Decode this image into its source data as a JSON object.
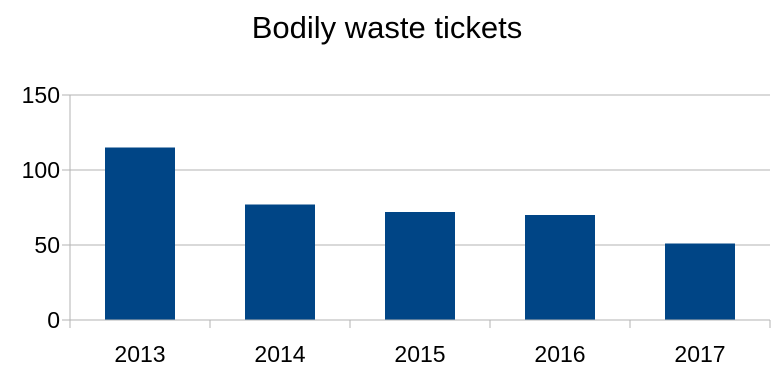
{
  "chart_data": {
    "type": "bar",
    "title": "Bodily waste tickets",
    "categories": [
      "2013",
      "2014",
      "2015",
      "2016",
      "2017"
    ],
    "values": [
      115,
      77,
      72,
      70,
      51
    ],
    "ylim": [
      0,
      150
    ],
    "yticks": [
      0,
      50,
      100,
      150
    ],
    "grid": true,
    "legend": "none",
    "colors": {
      "bar": "#004586",
      "grid": "#b3b3b3",
      "axis": "#b3b3b3"
    }
  }
}
